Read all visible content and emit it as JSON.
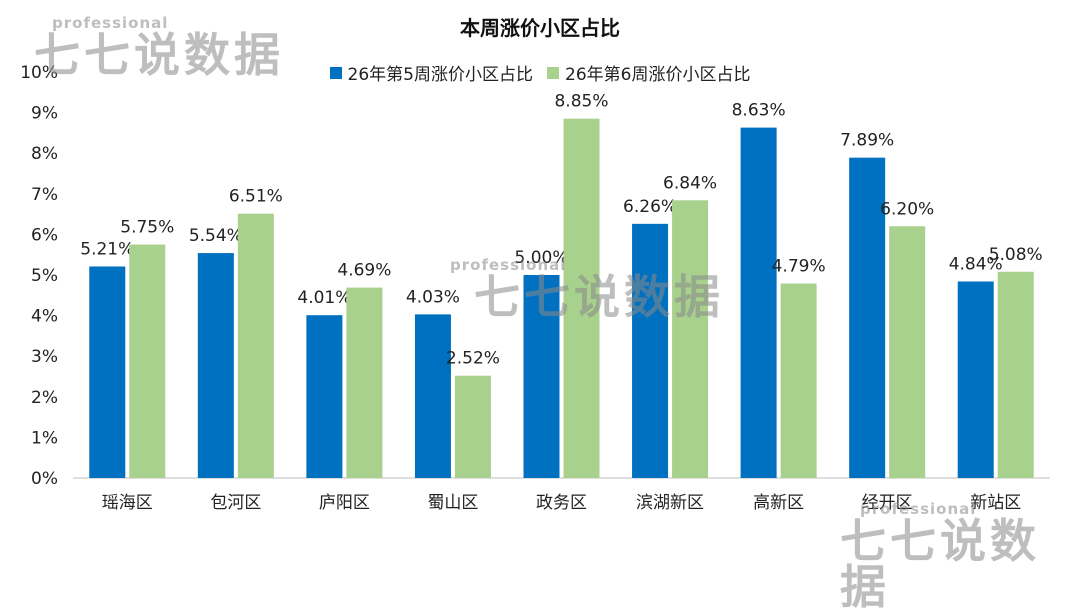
{
  "chart_data": {
    "type": "bar",
    "title": "本周涨价小区占比",
    "categories": [
      "瑶海区",
      "包河区",
      "庐阳区",
      "蜀山区",
      "政务区",
      "滨湖新区",
      "高新区",
      "经开区",
      "新站区"
    ],
    "series": [
      {
        "name": "26年第5周涨价小区占比",
        "color": "#0070C0",
        "values": [
          5.21,
          5.54,
          4.01,
          4.03,
          5.0,
          6.26,
          8.63,
          7.89,
          4.84
        ],
        "labels": [
          "5.21%",
          "5.54%",
          "4.01%",
          "4.03%",
          "5.00%",
          "6.26%",
          "8.63%",
          "7.89%",
          "4.84%"
        ]
      },
      {
        "name": "26年第6周涨价小区占比",
        "color": "#A9D18E",
        "values": [
          5.75,
          6.51,
          4.69,
          2.52,
          8.85,
          6.84,
          4.79,
          6.2,
          5.08
        ],
        "labels": [
          "5.75%",
          "6.51%",
          "4.69%",
          "2.52%",
          "8.85%",
          "6.84%",
          "4.79%",
          "6.20%",
          "5.08%"
        ]
      }
    ],
    "yticks": [
      "0%",
      "1%",
      "2%",
      "3%",
      "4%",
      "5%",
      "6%",
      "7%",
      "8%",
      "9%",
      "10%"
    ],
    "ylim": [
      0,
      10
    ],
    "xlabel": "",
    "ylabel": "",
    "grid": false,
    "legend_position": "top"
  },
  "watermark": {
    "brand": "professional",
    "name": "七七说数据"
  }
}
